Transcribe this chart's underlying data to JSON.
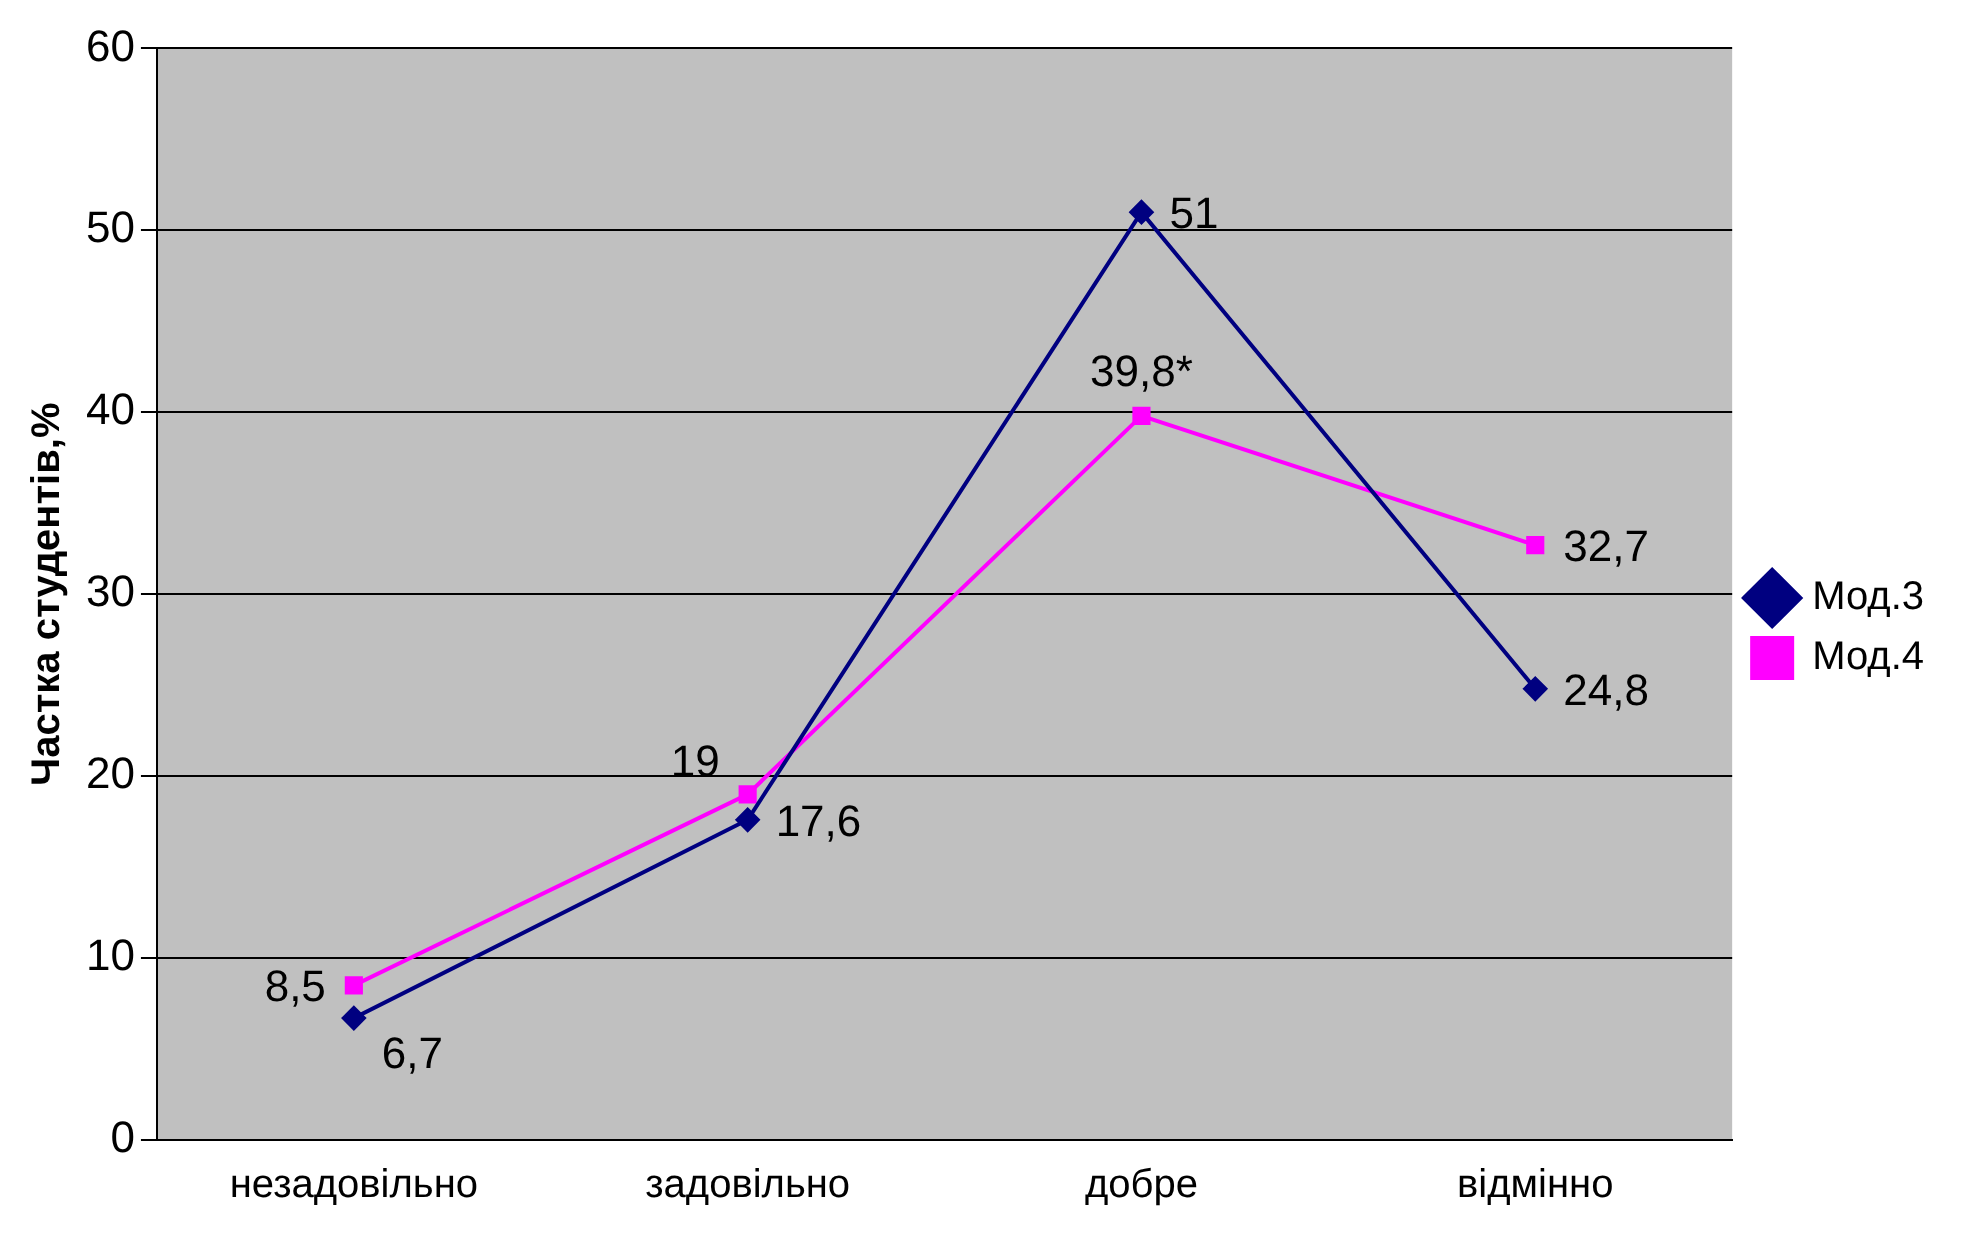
{
  "chart_data": {
    "type": "line",
    "ylabel": "Частка студентів,%",
    "categories": [
      "незадовільно",
      "задовільно",
      "добре",
      "відмінно"
    ],
    "series": [
      {
        "name": "Мод.3",
        "color": "#000080",
        "marker": "diamond",
        "values": [
          6.7,
          17.6,
          51,
          24.8
        ],
        "value_labels": [
          "6,7",
          "17,6",
          "51",
          "24,8"
        ]
      },
      {
        "name": "Мод.4",
        "color": "#ff00ff",
        "marker": "square",
        "values": [
          8.5,
          19,
          39.8,
          32.7
        ],
        "value_labels": [
          "8,5",
          "19",
          "39,8*",
          "32,7"
        ]
      }
    ],
    "ylim": [
      0,
      60
    ],
    "yticks": [
      0,
      10,
      20,
      30,
      40,
      50,
      60
    ],
    "grid": "y",
    "legend": "right",
    "line_style": "solid"
  }
}
